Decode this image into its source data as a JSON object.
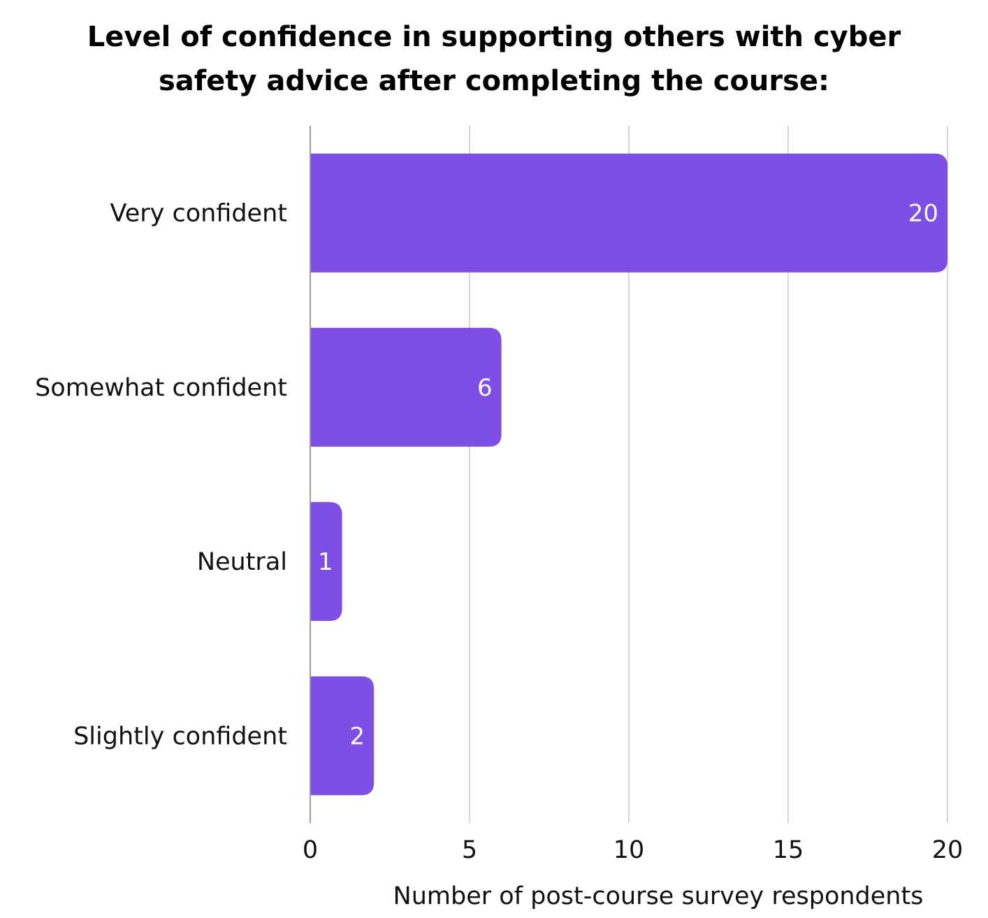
{
  "chart_data": {
    "type": "bar",
    "orientation": "horizontal",
    "title": "Level of confidence in supporting others with cyber safety advice after completing the course:",
    "title_lines": [
      "Level of confidence in supporting others with cyber",
      "safety advice after completing the course:"
    ],
    "categories": [
      "Very confident",
      "Somewhat confident",
      "Neutral",
      "Slightly confident"
    ],
    "values": [
      20,
      6,
      1,
      2
    ],
    "data_labels": [
      "20",
      "6",
      "1",
      "2"
    ],
    "xlabel": "Number of post-course survey respondents",
    "ylabel": "",
    "xlim": [
      0,
      20
    ],
    "xticks": [
      0,
      5,
      10,
      15,
      20
    ],
    "xtick_labels": [
      "0",
      "5",
      "10",
      "15",
      "20"
    ],
    "grid": "vertical",
    "legend": "none",
    "colors": {
      "bar": "#7d4fe6",
      "grid": "#c8c8c8",
      "axis": "#9a9a9a",
      "value_label": "#ffffff"
    }
  }
}
